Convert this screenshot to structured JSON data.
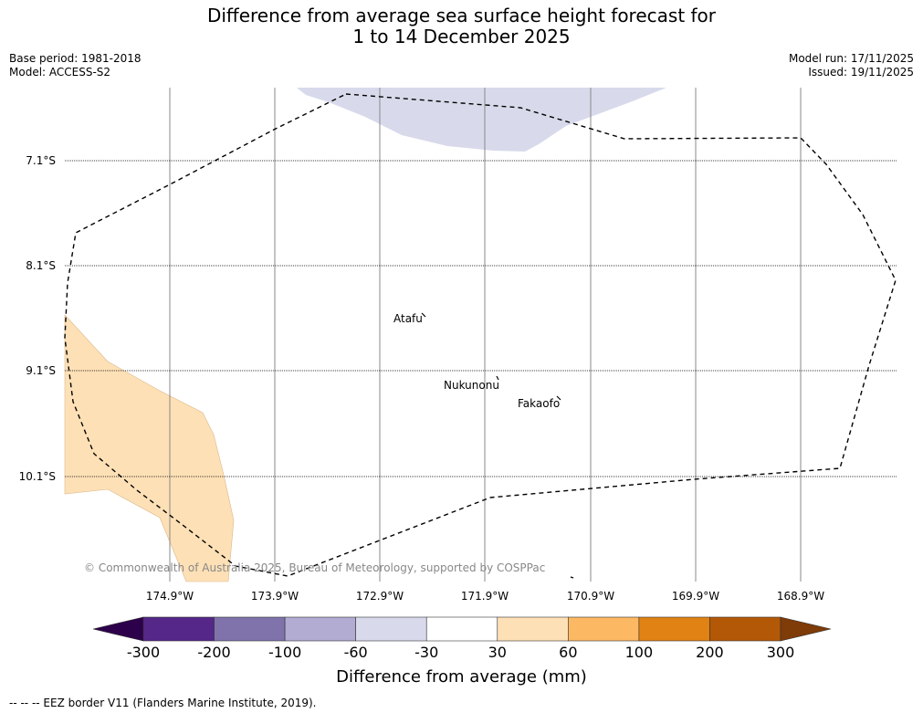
{
  "title_line1": "Difference from average sea surface height forecast for",
  "title_line2": "1 to 14 December 2025",
  "meta_left": [
    "Base period: 1981-2018",
    "Model: ACCESS-S2"
  ],
  "meta_right": [
    "Model run: 17/11/2025",
    "Issued: 19/11/2025"
  ],
  "lat_labels": [
    "7.1°S",
    "8.1°S",
    "9.1°S",
    "10.1°S"
  ],
  "lon_labels": [
    "174.9°W",
    "173.9°W",
    "172.9°W",
    "171.9°W",
    "170.9°W",
    "169.9°W",
    "168.9°W"
  ],
  "places": [
    "Atafu",
    "Nukunonu",
    "Fakaofo"
  ],
  "copyright": "© Commonwealth of Australia 2025, Bureau of Meteorology, supported by COSPPac",
  "colorbar": {
    "ticks": [
      "-300",
      "-200",
      "-100",
      "-60",
      "-30",
      "30",
      "60",
      "100",
      "200",
      "300"
    ],
    "colors": [
      "#2d004b",
      "#542788",
      "#8073ac",
      "#b2abd2",
      "#d8daeb",
      "#ffffff",
      "#fee0b6",
      "#fdb863",
      "#e08214",
      "#b35806",
      "#7f3b08"
    ],
    "label": "Difference from average (mm)"
  },
  "footer": "--  --  -- EEZ border V11 (Flanders Marine Institute, 2019).",
  "map_fill_colors": {
    "negative": "#d8daeb",
    "positive": "#fee0b6"
  }
}
